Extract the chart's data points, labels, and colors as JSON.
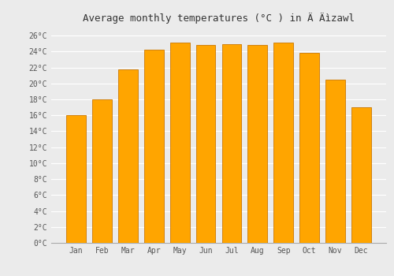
{
  "title": "Average monthly temperatures (°C ) in Ä Äìzawl",
  "months": [
    "Jan",
    "Feb",
    "Mar",
    "Apr",
    "May",
    "Jun",
    "Jul",
    "Aug",
    "Sep",
    "Oct",
    "Nov",
    "Dec"
  ],
  "values": [
    16.0,
    18.0,
    21.8,
    24.2,
    25.1,
    24.8,
    24.9,
    24.8,
    25.1,
    23.8,
    20.5,
    17.0
  ],
  "bar_color": "#FFA500",
  "bar_edge_color": "#CC7700",
  "ylim": [
    0,
    27
  ],
  "yticks": [
    0,
    2,
    4,
    6,
    8,
    10,
    12,
    14,
    16,
    18,
    20,
    22,
    24,
    26
  ],
  "ytick_labels": [
    "0°C",
    "2°C",
    "4°C",
    "6°C",
    "8°C",
    "10°C",
    "12°C",
    "14°C",
    "16°C",
    "18°C",
    "20°C",
    "22°C",
    "24°C",
    "26°C"
  ],
  "background_color": "#ebebeb",
  "grid_color": "#ffffff",
  "title_fontsize": 9,
  "tick_fontsize": 7,
  "bar_width": 0.75
}
